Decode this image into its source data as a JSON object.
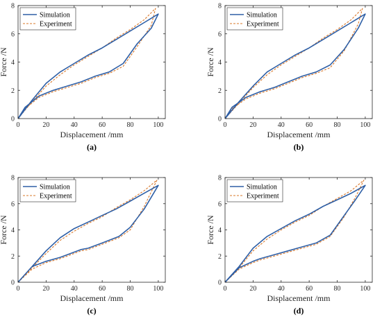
{
  "colors": {
    "simulation": "#2e5fa6",
    "experiment": "#d9782a",
    "axis": "#262626"
  },
  "chart_data": [
    {
      "type": "line",
      "label": "(a)",
      "xlabel": "Displacement /mm",
      "ylabel": "Force /N",
      "xlim": [
        0,
        105
      ],
      "ylim": [
        0,
        8
      ],
      "xticks": [
        "0",
        "20",
        "40",
        "60",
        "80",
        "100"
      ],
      "yticks": [
        "0",
        "2",
        "4",
        "6",
        "8"
      ],
      "legend": [
        "Simulation",
        "Experiment"
      ],
      "legend_position": "top-left",
      "series": [
        {
          "name": "Simulation",
          "x": [
            0,
            10,
            20,
            30,
            40,
            50,
            60,
            70,
            80,
            90,
            100,
            95,
            85,
            75,
            65,
            55,
            45,
            35,
            25,
            15,
            5,
            0
          ],
          "y": [
            0,
            1.3,
            2.5,
            3.3,
            3.9,
            4.5,
            5.0,
            5.6,
            6.2,
            6.8,
            7.4,
            6.4,
            5.3,
            3.9,
            3.3,
            3.0,
            2.6,
            2.3,
            2.0,
            1.6,
            0.8,
            0
          ]
        },
        {
          "name": "Experiment",
          "x": [
            0,
            10,
            20,
            30,
            40,
            50,
            60,
            70,
            80,
            90,
            98,
            95,
            85,
            75,
            65,
            55,
            45,
            35,
            25,
            15,
            5,
            0
          ],
          "y": [
            0,
            1.2,
            2.3,
            3.1,
            3.8,
            4.4,
            5.0,
            5.7,
            6.3,
            7.0,
            7.8,
            6.6,
            5.1,
            3.7,
            3.2,
            2.9,
            2.5,
            2.2,
            1.9,
            1.5,
            0.7,
            0
          ]
        }
      ]
    },
    {
      "type": "line",
      "label": "(b)",
      "xlabel": "Displacement /mm",
      "ylabel": "Force /N",
      "xlim": [
        0,
        105
      ],
      "ylim": [
        0,
        8
      ],
      "xticks": [
        "0",
        "20",
        "40",
        "60",
        "80",
        "100"
      ],
      "yticks": [
        "0",
        "2",
        "4",
        "6",
        "8"
      ],
      "legend": [
        "Simulation",
        "Experiment"
      ],
      "legend_position": "top-left",
      "series": [
        {
          "name": "Simulation",
          "x": [
            0,
            10,
            20,
            30,
            40,
            50,
            60,
            70,
            80,
            90,
            100,
            95,
            85,
            75,
            65,
            55,
            45,
            35,
            25,
            15,
            5,
            0
          ],
          "y": [
            0,
            1.2,
            2.3,
            3.3,
            3.9,
            4.5,
            5.0,
            5.6,
            6.2,
            6.8,
            7.4,
            6.4,
            4.9,
            3.8,
            3.3,
            3.0,
            2.6,
            2.2,
            1.9,
            1.5,
            0.8,
            0
          ]
        },
        {
          "name": "Experiment",
          "x": [
            0,
            10,
            20,
            30,
            40,
            50,
            60,
            70,
            80,
            90,
            98,
            95,
            85,
            75,
            65,
            55,
            45,
            35,
            25,
            15,
            5,
            0
          ],
          "y": [
            0,
            1.1,
            2.2,
            3.1,
            3.8,
            4.4,
            5.0,
            5.7,
            6.3,
            7.0,
            7.8,
            6.7,
            4.8,
            3.6,
            3.2,
            2.9,
            2.5,
            2.1,
            1.8,
            1.4,
            0.7,
            0
          ]
        }
      ]
    },
    {
      "type": "line",
      "label": "(c)",
      "xlabel": "Displacement /mm",
      "ylabel": "Force /N",
      "xlim": [
        0,
        105
      ],
      "ylim": [
        0,
        8
      ],
      "xticks": [
        "0",
        "20",
        "40",
        "60",
        "80",
        "100"
      ],
      "yticks": [
        "0",
        "2",
        "4",
        "6",
        "8"
      ],
      "legend": [
        "Simulation",
        "Experiment"
      ],
      "legend_position": "top-left",
      "series": [
        {
          "name": "Simulation",
          "x": [
            0,
            10,
            20,
            30,
            40,
            50,
            60,
            70,
            80,
            90,
            100,
            90,
            80,
            72,
            60,
            50,
            45,
            35,
            30,
            20,
            10,
            0
          ],
          "y": [
            0,
            1.2,
            2.4,
            3.4,
            4.1,
            4.6,
            5.1,
            5.6,
            6.2,
            6.8,
            7.4,
            5.6,
            4.2,
            3.5,
            3.0,
            2.6,
            2.5,
            2.1,
            1.9,
            1.6,
            1.2,
            0
          ]
        },
        {
          "name": "Experiment",
          "x": [
            0,
            10,
            20,
            30,
            40,
            50,
            60,
            70,
            80,
            90,
            99,
            90,
            80,
            72,
            60,
            50,
            45,
            35,
            30,
            20,
            10,
            0
          ],
          "y": [
            0,
            1.1,
            2.2,
            3.2,
            3.9,
            4.5,
            5.0,
            5.7,
            6.3,
            7.0,
            7.8,
            5.8,
            4.0,
            3.4,
            2.9,
            2.5,
            2.4,
            2.0,
            1.8,
            1.5,
            1.0,
            0
          ]
        }
      ]
    },
    {
      "type": "line",
      "label": "(d)",
      "xlabel": "Displacement /mm",
      "ylabel": "Force /N",
      "xlim": [
        0,
        105
      ],
      "ylim": [
        0,
        8
      ],
      "xticks": [
        "0",
        "20",
        "40",
        "60",
        "80",
        "100"
      ],
      "yticks": [
        "0",
        "2",
        "4",
        "6",
        "8"
      ],
      "legend": [
        "Simulation",
        "Experiment"
      ],
      "legend_position": "top-left",
      "series": [
        {
          "name": "Simulation",
          "x": [
            0,
            10,
            20,
            30,
            40,
            50,
            60,
            70,
            80,
            90,
            100,
            93,
            85,
            75,
            65,
            55,
            45,
            35,
            25,
            20,
            10,
            0
          ],
          "y": [
            0,
            1.2,
            2.6,
            3.5,
            4.1,
            4.7,
            5.2,
            5.8,
            6.3,
            6.8,
            7.4,
            6.3,
            5.1,
            3.6,
            3.0,
            2.7,
            2.4,
            2.1,
            1.8,
            1.6,
            1.1,
            0
          ]
        },
        {
          "name": "Experiment",
          "x": [
            0,
            10,
            20,
            30,
            40,
            50,
            60,
            70,
            80,
            90,
            99,
            93,
            85,
            75,
            65,
            55,
            45,
            35,
            25,
            20,
            10,
            0
          ],
          "y": [
            0,
            1.1,
            2.4,
            3.3,
            4.0,
            4.6,
            5.1,
            5.8,
            6.4,
            7.0,
            7.8,
            6.5,
            5.0,
            3.5,
            2.9,
            2.6,
            2.3,
            2.0,
            1.7,
            1.5,
            1.0,
            0
          ]
        }
      ]
    }
  ]
}
